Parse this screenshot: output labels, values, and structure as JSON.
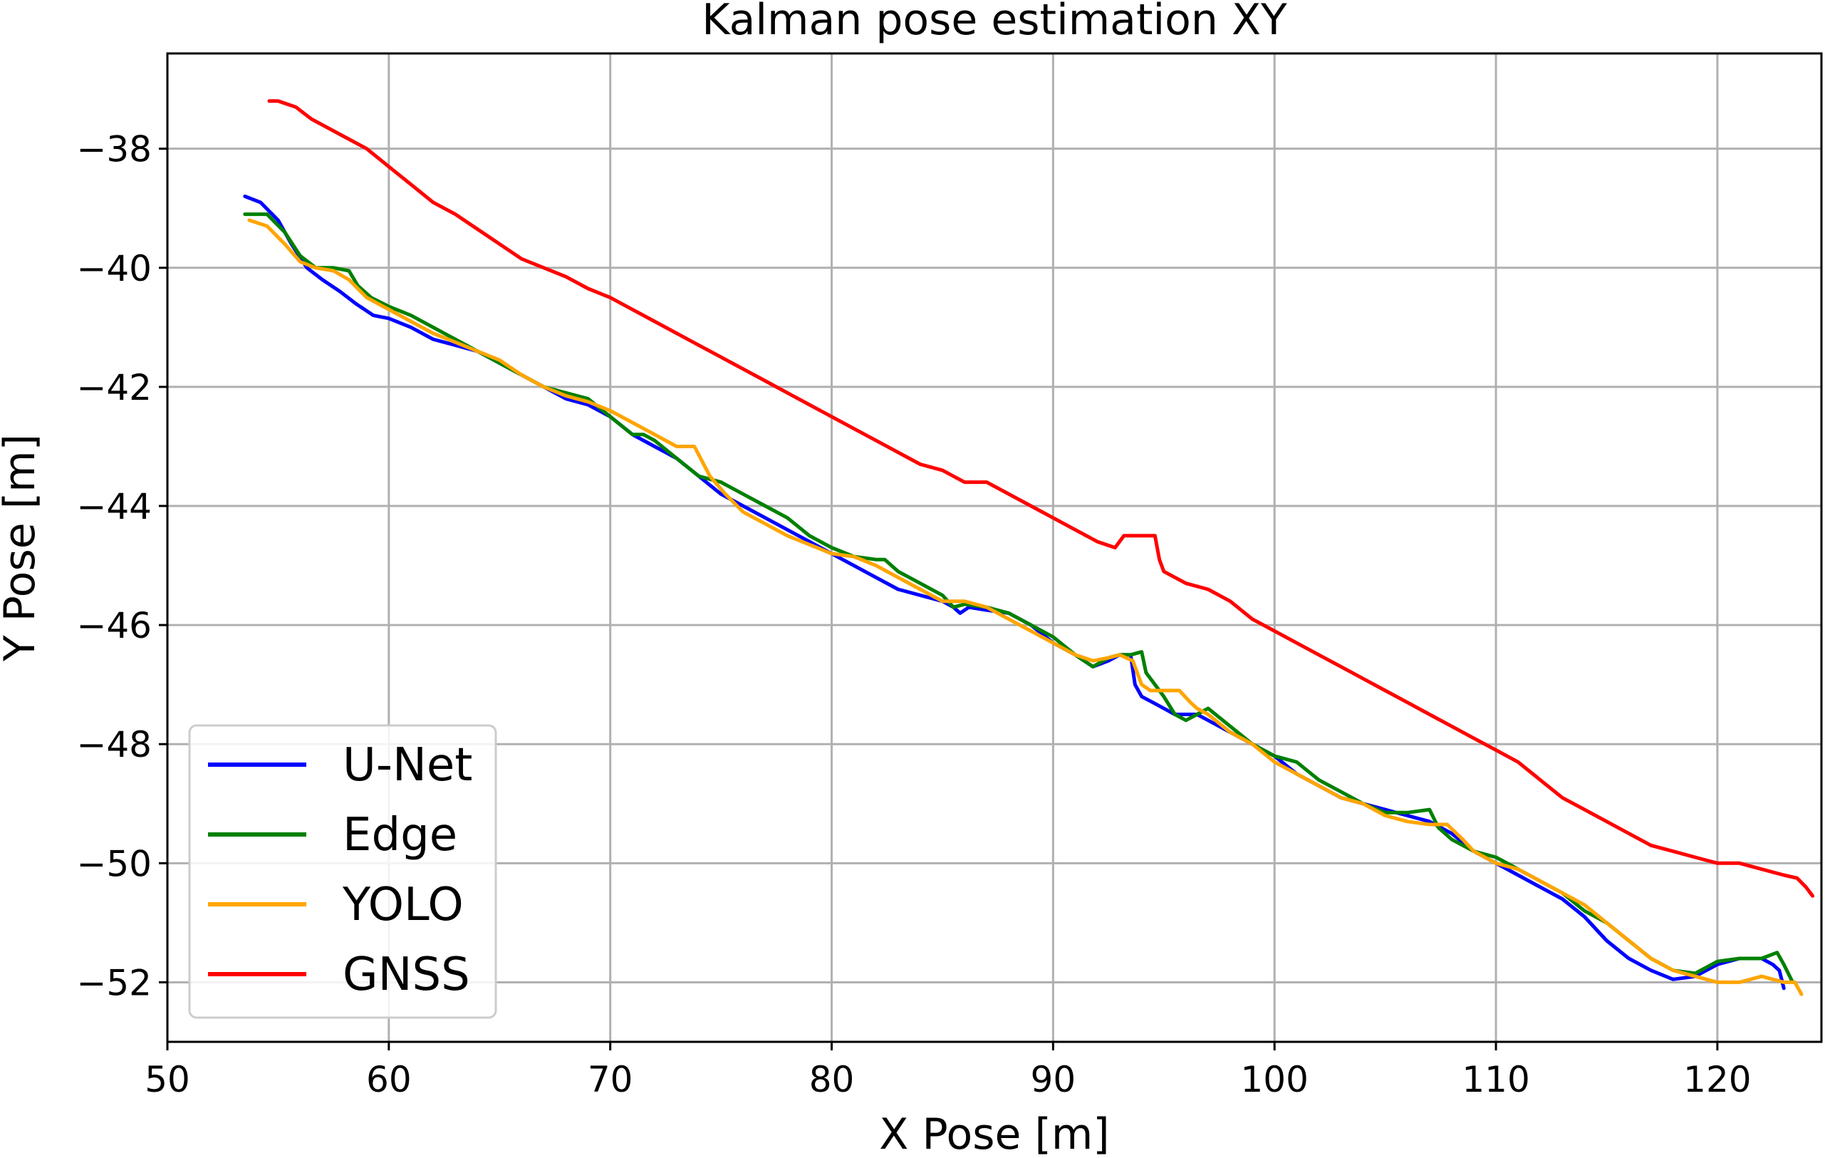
{
  "chart_data": {
    "type": "line",
    "title": "Kalman pose estimation XY",
    "xlabel": "X Pose [m]",
    "ylabel": "Y Pose [m]",
    "xlim": [
      50,
      124.7
    ],
    "ylim": [
      -53,
      -36.4
    ],
    "xticks": [
      50,
      60,
      70,
      80,
      90,
      100,
      110,
      120
    ],
    "yticks": [
      -38,
      -40,
      -42,
      -44,
      -46,
      -48,
      -50,
      -52
    ],
    "xtick_labels": [
      "50",
      "60",
      "70",
      "80",
      "90",
      "100",
      "110",
      "120"
    ],
    "ytick_labels": [
      "−38",
      "−40",
      "−42",
      "−44",
      "−46",
      "−48",
      "−50",
      "−52"
    ],
    "grid": true,
    "legend_position": "lower-left",
    "series": [
      {
        "name": "U-Net",
        "color": "#0000ff",
        "x": [
          53.5,
          54.2,
          55.0,
          55.6,
          56.3,
          57.0,
          57.8,
          58.5,
          59.3,
          60.0,
          61.0,
          62.0,
          63.0,
          64.0,
          65.0,
          66.0,
          67.0,
          68.0,
          69.0,
          70.0,
          71.0,
          72.0,
          73.0,
          74.0,
          75.0,
          76.0,
          77.0,
          78.0,
          79.0,
          80.0,
          81.0,
          82.0,
          83.0,
          84.0,
          85.0,
          85.5,
          85.8,
          86.2,
          87.0,
          88.0,
          89.0,
          90.0,
          91.0,
          91.8,
          92.5,
          93.0,
          93.5,
          93.7,
          94.0,
          94.5,
          95.0,
          95.5,
          96.0,
          96.5,
          97.0,
          98.0,
          99.0,
          100.0,
          101.0,
          102.0,
          103.0,
          104.0,
          105.0,
          106.0,
          107.0,
          108.0,
          109.0,
          110.0,
          111.0,
          112.0,
          113.0,
          114.0,
          115.0,
          116.0,
          117.0,
          118.0,
          119.0,
          120.0,
          121.0,
          122.0,
          122.5,
          122.8,
          123.0
        ],
        "y": [
          -38.8,
          -38.9,
          -39.2,
          -39.6,
          -40.0,
          -40.2,
          -40.4,
          -40.6,
          -40.8,
          -40.85,
          -41.0,
          -41.2,
          -41.3,
          -41.4,
          -41.6,
          -41.8,
          -42.0,
          -42.2,
          -42.3,
          -42.5,
          -42.8,
          -43.0,
          -43.2,
          -43.5,
          -43.8,
          -44.0,
          -44.2,
          -44.4,
          -44.6,
          -44.8,
          -45.0,
          -45.2,
          -45.4,
          -45.5,
          -45.6,
          -45.7,
          -45.8,
          -45.7,
          -45.75,
          -45.8,
          -46.0,
          -46.3,
          -46.5,
          -46.7,
          -46.6,
          -46.5,
          -46.5,
          -47.0,
          -47.2,
          -47.3,
          -47.4,
          -47.5,
          -47.5,
          -47.5,
          -47.6,
          -47.8,
          -48.0,
          -48.2,
          -48.5,
          -48.7,
          -48.9,
          -49.0,
          -49.1,
          -49.2,
          -49.3,
          -49.5,
          -49.8,
          -50.0,
          -50.2,
          -50.4,
          -50.6,
          -50.9,
          -51.3,
          -51.6,
          -51.8,
          -51.95,
          -51.9,
          -51.7,
          -51.6,
          -51.6,
          -51.7,
          -51.8,
          -52.1
        ]
      },
      {
        "name": "Edge",
        "color": "#008000",
        "x": [
          53.5,
          54.5,
          55.3,
          56.0,
          56.7,
          57.5,
          58.2,
          58.6,
          59.2,
          60.0,
          61.0,
          62.0,
          63.0,
          64.0,
          65.0,
          66.0,
          67.0,
          68.0,
          69.0,
          70.0,
          71.0,
          71.5,
          72.0,
          73.0,
          74.0,
          75.0,
          76.0,
          77.0,
          78.0,
          79.0,
          80.0,
          81.0,
          82.0,
          82.4,
          83.0,
          84.0,
          85.0,
          85.5,
          86.0,
          87.0,
          88.0,
          89.0,
          90.0,
          91.0,
          91.8,
          92.5,
          93.0,
          93.5,
          94.0,
          94.2,
          94.6,
          95.0,
          95.5,
          96.0,
          96.5,
          97.0,
          98.0,
          99.0,
          100.0,
          101.0,
          102.0,
          103.0,
          104.0,
          105.0,
          106.0,
          107.0,
          107.4,
          108.0,
          109.0,
          110.0,
          111.0,
          112.0,
          113.0,
          114.0,
          115.0,
          116.0,
          117.0,
          118.0,
          119.0,
          120.0,
          121.0,
          122.0,
          122.7,
          123.0,
          123.4
        ],
        "y": [
          -39.1,
          -39.1,
          -39.4,
          -39.8,
          -40.0,
          -40.0,
          -40.05,
          -40.3,
          -40.5,
          -40.65,
          -40.8,
          -41.0,
          -41.2,
          -41.4,
          -41.6,
          -41.8,
          -42.0,
          -42.1,
          -42.2,
          -42.5,
          -42.8,
          -42.8,
          -42.9,
          -43.2,
          -43.5,
          -43.6,
          -43.8,
          -44.0,
          -44.2,
          -44.5,
          -44.7,
          -44.85,
          -44.9,
          -44.9,
          -45.1,
          -45.3,
          -45.5,
          -45.7,
          -45.65,
          -45.7,
          -45.8,
          -46.0,
          -46.2,
          -46.5,
          -46.7,
          -46.55,
          -46.5,
          -46.5,
          -46.45,
          -46.8,
          -47.0,
          -47.2,
          -47.5,
          -47.6,
          -47.5,
          -47.4,
          -47.7,
          -48.0,
          -48.2,
          -48.3,
          -48.6,
          -48.8,
          -49.0,
          -49.15,
          -49.15,
          -49.1,
          -49.4,
          -49.6,
          -49.8,
          -49.9,
          -50.1,
          -50.3,
          -50.5,
          -50.8,
          -51.0,
          -51.3,
          -51.6,
          -51.8,
          -51.85,
          -51.65,
          -51.6,
          -51.6,
          -51.5,
          -51.7,
          -52.0
        ]
      },
      {
        "name": "YOLO",
        "color": "#ffa500",
        "x": [
          53.7,
          54.5,
          55.3,
          56.0,
          56.7,
          57.5,
          58.2,
          59.0,
          60.0,
          61.0,
          62.0,
          63.0,
          64.0,
          65.0,
          66.0,
          67.0,
          68.0,
          69.0,
          70.0,
          71.0,
          72.0,
          73.0,
          73.8,
          74.5,
          75.2,
          76.0,
          77.0,
          78.0,
          79.0,
          80.0,
          81.0,
          82.0,
          83.0,
          84.0,
          85.0,
          86.0,
          87.0,
          88.0,
          89.0,
          90.0,
          91.0,
          91.8,
          92.5,
          93.0,
          93.6,
          94.0,
          94.4,
          95.0,
          95.7,
          96.2,
          96.5,
          97.0,
          98.0,
          99.0,
          100.0,
          101.0,
          102.0,
          103.0,
          104.0,
          105.0,
          106.0,
          107.0,
          107.8,
          108.5,
          109.0,
          110.0,
          111.0,
          112.0,
          113.0,
          114.0,
          115.0,
          116.0,
          117.0,
          118.0,
          119.0,
          120.0,
          121.0,
          122.0,
          123.0,
          123.5,
          123.8
        ],
        "y": [
          -39.2,
          -39.3,
          -39.6,
          -39.9,
          -40.0,
          -40.05,
          -40.2,
          -40.5,
          -40.7,
          -40.9,
          -41.1,
          -41.25,
          -41.4,
          -41.55,
          -41.8,
          -42.0,
          -42.15,
          -42.25,
          -42.4,
          -42.6,
          -42.8,
          -43.0,
          -43.0,
          -43.5,
          -43.8,
          -44.1,
          -44.3,
          -44.5,
          -44.65,
          -44.8,
          -44.85,
          -45.0,
          -45.2,
          -45.4,
          -45.6,
          -45.6,
          -45.7,
          -45.9,
          -46.1,
          -46.3,
          -46.5,
          -46.6,
          -46.55,
          -46.5,
          -46.6,
          -47.0,
          -47.1,
          -47.1,
          -47.1,
          -47.3,
          -47.4,
          -47.5,
          -47.8,
          -48.0,
          -48.3,
          -48.5,
          -48.7,
          -48.9,
          -49.0,
          -49.2,
          -49.3,
          -49.35,
          -49.35,
          -49.6,
          -49.8,
          -50.0,
          -50.1,
          -50.3,
          -50.5,
          -50.7,
          -51.0,
          -51.3,
          -51.6,
          -51.8,
          -51.9,
          -52.0,
          -52.0,
          -51.9,
          -52.0,
          -52.0,
          -52.2
        ]
      },
      {
        "name": "GNSS",
        "color": "#ff0000",
        "x": [
          54.6,
          55.0,
          55.8,
          56.5,
          57.0,
          58.0,
          59.0,
          60.0,
          61.0,
          62.0,
          63.0,
          64.0,
          65.0,
          66.0,
          67.0,
          68.0,
          69.0,
          70.0,
          71.0,
          72.0,
          73.0,
          74.0,
          75.0,
          76.0,
          77.0,
          78.0,
          79.0,
          80.0,
          81.0,
          82.0,
          83.0,
          84.0,
          85.0,
          86.0,
          86.5,
          87.0,
          88.0,
          89.0,
          90.0,
          91.0,
          92.0,
          92.8,
          93.2,
          94.0,
          94.6,
          94.8,
          95.0,
          96.0,
          97.0,
          98.0,
          99.0,
          100.0,
          101.0,
          102.0,
          103.0,
          104.0,
          105.0,
          106.0,
          107.0,
          108.0,
          109.0,
          110.0,
          111.0,
          112.0,
          113.0,
          114.0,
          115.0,
          116.0,
          117.0,
          118.0,
          119.0,
          120.0,
          121.0,
          122.0,
          123.0,
          123.6,
          124.0,
          124.3
        ],
        "y": [
          -37.2,
          -37.2,
          -37.3,
          -37.5,
          -37.6,
          -37.8,
          -38.0,
          -38.3,
          -38.6,
          -38.9,
          -39.1,
          -39.35,
          -39.6,
          -39.85,
          -40.0,
          -40.15,
          -40.35,
          -40.5,
          -40.7,
          -40.9,
          -41.1,
          -41.3,
          -41.5,
          -41.7,
          -41.9,
          -42.1,
          -42.3,
          -42.5,
          -42.7,
          -42.9,
          -43.1,
          -43.3,
          -43.4,
          -43.6,
          -43.6,
          -43.6,
          -43.8,
          -44.0,
          -44.2,
          -44.4,
          -44.6,
          -44.7,
          -44.5,
          -44.5,
          -44.5,
          -44.9,
          -45.1,
          -45.3,
          -45.4,
          -45.6,
          -45.9,
          -46.1,
          -46.3,
          -46.5,
          -46.7,
          -46.9,
          -47.1,
          -47.3,
          -47.5,
          -47.7,
          -47.9,
          -48.1,
          -48.3,
          -48.6,
          -48.9,
          -49.1,
          -49.3,
          -49.5,
          -49.7,
          -49.8,
          -49.9,
          -50.0,
          -50.0,
          -50.1,
          -50.2,
          -50.25,
          -50.4,
          -50.55
        ]
      }
    ]
  }
}
